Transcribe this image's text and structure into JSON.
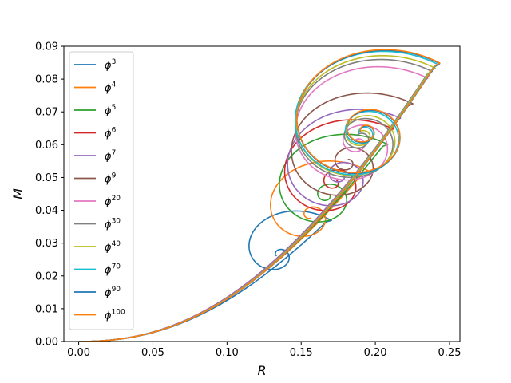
{
  "chart_data": {
    "type": "line",
    "xlabel": "R",
    "ylabel": "M",
    "xlim": [
      -0.01,
      0.257
    ],
    "ylim": [
      0,
      0.09
    ],
    "xticks": [
      "0.00",
      "0.05",
      "0.10",
      "0.15",
      "0.20",
      "0.25"
    ],
    "yticks": [
      "0.00",
      "0.01",
      "0.02",
      "0.03",
      "0.04",
      "0.05",
      "0.06",
      "0.07",
      "0.08",
      "0.09"
    ],
    "grid": false,
    "legend_position": "upper-left",
    "series": [
      {
        "name": "ϕ",
        "exp": "3",
        "color": "#1f77b4",
        "peak": [
          0.167,
          0.0365
        ],
        "center": [
          0.135,
          0.0265
        ],
        "r0": 0.033,
        "turns": 1.5
      },
      {
        "name": "ϕ",
        "exp": "4",
        "color": "#ff7f0e",
        "peak": [
          0.192,
          0.0515
        ],
        "center": [
          0.156,
          0.0385
        ],
        "r0": 0.047,
        "turns": 1.7
      },
      {
        "name": "ϕ",
        "exp": "5",
        "color": "#2ca02c",
        "peak": [
          0.205,
          0.0595
        ],
        "center": [
          0.167,
          0.0445
        ],
        "r0": 0.057,
        "turns": 1.9
      },
      {
        "name": "ϕ",
        "exp": "6",
        "color": "#d62728",
        "peak": [
          0.209,
          0.0642
        ],
        "center": [
          0.172,
          0.0485
        ],
        "r0": 0.061,
        "turns": 2.0
      },
      {
        "name": "ϕ",
        "exp": "7",
        "color": "#9467bd",
        "peak": [
          0.214,
          0.0675
        ],
        "center": [
          0.176,
          0.0505
        ],
        "r0": 0.063,
        "turns": 2.0
      },
      {
        "name": "ϕ",
        "exp": "9",
        "color": "#8c564b",
        "peak": [
          0.222,
          0.0718
        ],
        "center": [
          0.181,
          0.0545
        ],
        "r0": 0.066,
        "turns": 2.1
      },
      {
        "name": "ϕ",
        "exp": "20",
        "color": "#e377c2",
        "peak": [
          0.232,
          0.0795
        ],
        "center": [
          0.188,
          0.0605
        ],
        "r0": 0.071,
        "turns": 2.2
      },
      {
        "name": "ϕ",
        "exp": "30",
        "color": "#7f7f7f",
        "peak": [
          0.235,
          0.0815
        ],
        "center": [
          0.19,
          0.062
        ],
        "r0": 0.072,
        "turns": 2.3
      },
      {
        "name": "ϕ",
        "exp": "40",
        "color": "#bcbd22",
        "peak": [
          0.237,
          0.0825
        ],
        "center": [
          0.191,
          0.0628
        ],
        "r0": 0.073,
        "turns": 2.3
      },
      {
        "name": "ϕ",
        "exp": "70",
        "color": "#17becf",
        "peak": [
          0.239,
          0.0835
        ],
        "center": [
          0.192,
          0.0636
        ],
        "r0": 0.074,
        "turns": 2.4
      },
      {
        "name": "ϕ",
        "exp": "90",
        "color": "#1f77b4",
        "peak": [
          0.24,
          0.0838
        ],
        "center": [
          0.193,
          0.064
        ],
        "r0": 0.074,
        "turns": 2.4
      },
      {
        "name": "ϕ",
        "exp": "100",
        "color": "#ff7f0e",
        "peak": [
          0.24,
          0.084
        ],
        "center": [
          0.193,
          0.0642
        ],
        "r0": 0.074,
        "turns": 2.4
      }
    ]
  }
}
